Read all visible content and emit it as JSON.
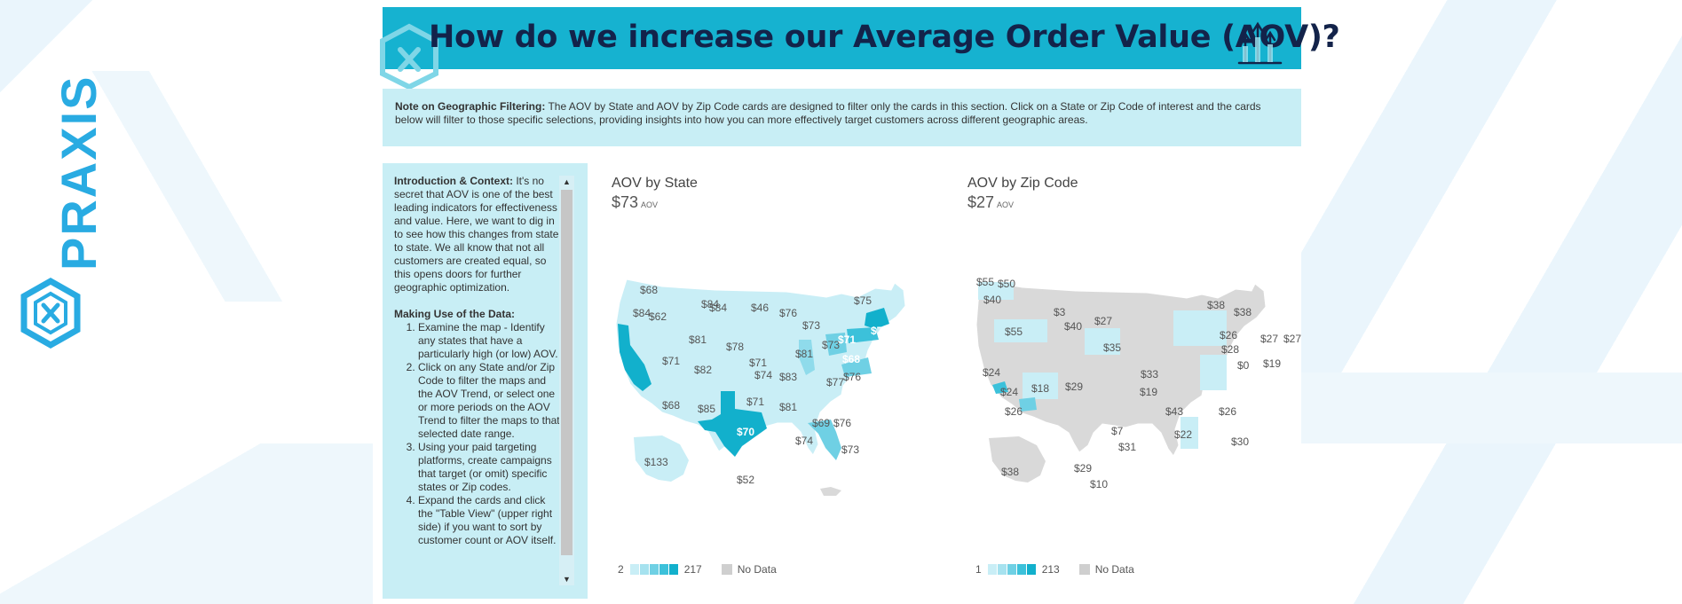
{
  "banner": {
    "title": "How do we increase our Average Order Value (AOV)?"
  },
  "brand": {
    "name": "PRAXIS",
    "color": "#29abe2"
  },
  "note": {
    "label": "Note on Geographic Filtering:",
    "text": " The AOV by State and AOV by Zip Code cards are designed to filter only the cards in this section. Click on a State or Zip Code of interest and the cards below will filter to those specific selections, providing insights into how you can more effectively target customers across different geographic areas."
  },
  "intro": {
    "context_label": "Introduction & Context:",
    "context_text": " It's no secret that AOV is one of the best leading indicators for effectiveness and value. Here, we want to dig in to see how this changes from state to state. We all know that not all customers are created equal, so this opens doors for further geographic optimization.",
    "usage_label": "Making Use of the Data:",
    "steps": [
      "Examine the map - Identify any states that have a particularly high (or low) AOV.",
      "Click on any State and/or Zip Code to filter the maps and the AOV Trend, or select one or more periods on the AOV Trend to filter the maps to that selected date range.",
      "Using your paid targeting platforms, create campaigns that target (or omit) specific states or Zip codes.",
      "Expand the cards and click the \"Table View\" (upper right side) if you want to sort by customer count or AOV itself."
    ]
  },
  "state_card": {
    "title": "AOV by State",
    "value": "$73",
    "unit": "AOV",
    "legend_min": "2",
    "legend_max": "217",
    "no_data": "No Data",
    "labels": [
      {
        "t": "$68"
      },
      {
        "t": "$84"
      },
      {
        "t": "$62"
      },
      {
        "t": "$84"
      },
      {
        "t": "$46"
      },
      {
        "t": "$76"
      },
      {
        "t": "$75"
      },
      {
        "t": "$84"
      },
      {
        "t": "$73"
      },
      {
        "t": "$81"
      },
      {
        "t": "$73"
      },
      {
        "t": "$71"
      },
      {
        "t": "$71"
      },
      {
        "t": "$78"
      },
      {
        "t": "$71"
      },
      {
        "t": "$81"
      },
      {
        "t": "$68"
      },
      {
        "t": "$71"
      },
      {
        "t": "$82"
      },
      {
        "t": "$74"
      },
      {
        "t": "$83"
      },
      {
        "t": "$77"
      },
      {
        "t": "$76"
      },
      {
        "t": "$68"
      },
      {
        "t": "$85"
      },
      {
        "t": "$71"
      },
      {
        "t": "$81"
      },
      {
        "t": "$69"
      },
      {
        "t": "$76"
      },
      {
        "t": "$70"
      },
      {
        "t": "$74"
      },
      {
        "t": "$73"
      },
      {
        "t": "$133"
      },
      {
        "t": "$52"
      }
    ]
  },
  "zip_card": {
    "title": "AOV by Zip Code",
    "value": "$27",
    "unit": "AOV",
    "legend_min": "1",
    "legend_max": "213",
    "no_data": "No Data",
    "labels": [
      {
        "t": "$55"
      },
      {
        "t": "$50"
      },
      {
        "t": "$40"
      },
      {
        "t": "$38"
      },
      {
        "t": "$38"
      },
      {
        "t": "$3"
      },
      {
        "t": "$27"
      },
      {
        "t": "$40"
      },
      {
        "t": "$55"
      },
      {
        "t": "$26"
      },
      {
        "t": "$27"
      },
      {
        "t": "$27"
      },
      {
        "t": "$28"
      },
      {
        "t": "$35"
      },
      {
        "t": "$0"
      },
      {
        "t": "$19"
      },
      {
        "t": "$24"
      },
      {
        "t": "$33"
      },
      {
        "t": "$24"
      },
      {
        "t": "$18"
      },
      {
        "t": "$29"
      },
      {
        "t": "$19"
      },
      {
        "t": "$43"
      },
      {
        "t": "$26"
      },
      {
        "t": "$26"
      },
      {
        "t": "$7"
      },
      {
        "t": "$22"
      },
      {
        "t": "$30"
      },
      {
        "t": "$31"
      },
      {
        "t": "$38"
      },
      {
        "t": "$29"
      },
      {
        "t": "$10"
      }
    ]
  },
  "colors": {
    "banner_bg": "#16b2d0",
    "note_bg": "#c8eef5",
    "title_color": "#13234a",
    "map_light": "#c9eef6",
    "map_mid": "#8fdbeb",
    "map_dark": "#12b0cc",
    "zip_grey": "#d9d9d9",
    "legend_scale": [
      "#c9eef6",
      "#a6e2ef",
      "#6fd0e4",
      "#3cc1da",
      "#12b0cc"
    ]
  }
}
